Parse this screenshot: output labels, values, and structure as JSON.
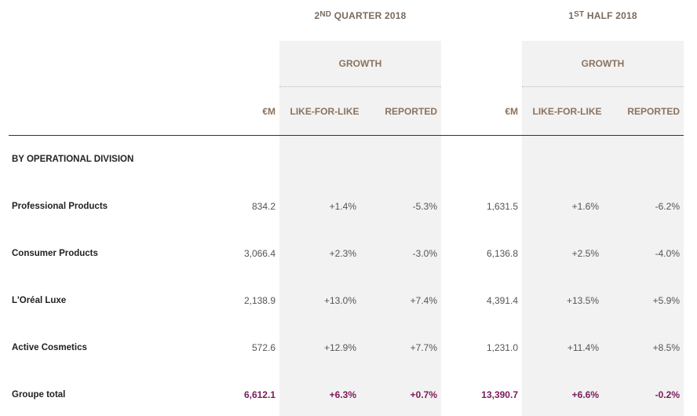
{
  "periods": {
    "q2": {
      "ordinal": "2",
      "suffix": "ND",
      "rest": "QUARTER 2018"
    },
    "h1": {
      "ordinal": "1",
      "suffix": "ST",
      "rest": "HALF 2018"
    }
  },
  "growth_label": "GROWTH",
  "columns": {
    "em": "€M",
    "lfl": "LIKE-FOR-LIKE",
    "reported": "REPORTED"
  },
  "section_title": "BY OPERATIONAL DIVISION",
  "rows": [
    {
      "label": "Professional Products",
      "q2_em": "834.2",
      "q2_lfl": "+1.4%",
      "q2_rep": "-5.3%",
      "h1_em": "1,631.5",
      "h1_lfl": "+1.6%",
      "h1_rep": "-6.2%"
    },
    {
      "label": "Consumer Products",
      "q2_em": "3,066.4",
      "q2_lfl": "+2.3%",
      "q2_rep": "-3.0%",
      "h1_em": "6,136.8",
      "h1_lfl": "+2.5%",
      "h1_rep": "-4.0%"
    },
    {
      "label": "L'Oréal Luxe",
      "q2_em": "2,138.9",
      "q2_lfl": "+13.0%",
      "q2_rep": "+7.4%",
      "h1_em": "4,391.4",
      "h1_lfl": "+13.5%",
      "h1_rep": "+5.9%"
    },
    {
      "label": "Active Cosmetics",
      "q2_em": "572.6",
      "q2_lfl": "+12.9%",
      "q2_rep": "+7.7%",
      "h1_em": "1,231.0",
      "h1_lfl": "+11.4%",
      "h1_rep": "+8.5%"
    }
  ],
  "total": {
    "label": "Groupe total",
    "q2_em": "6,612.1",
    "q2_lfl": "+6.3%",
    "q2_rep": "+0.7%",
    "h1_em": "13,390.7",
    "h1_lfl": "+6.6%",
    "h1_rep": "-0.2%"
  },
  "colors": {
    "accent_total": "#7a1a5a",
    "header_text": "#8a735f",
    "shade": "#f2f2f2"
  }
}
